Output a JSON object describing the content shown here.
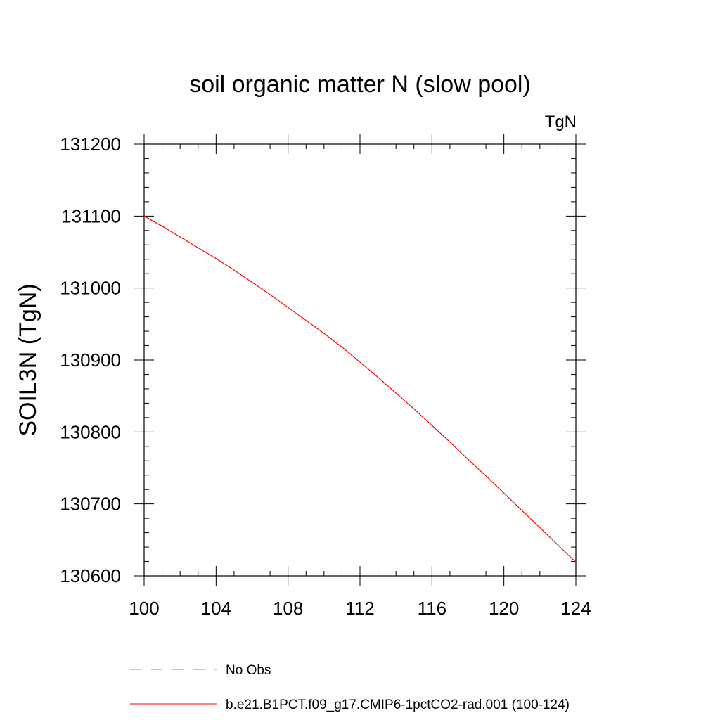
{
  "chart_data": {
    "type": "line",
    "title": "soil organic matter N (slow pool)",
    "units": "TgN",
    "xlabel": "",
    "ylabel": "SOIL3N  (TgN)",
    "xlim": [
      100,
      124
    ],
    "ylim": [
      130600,
      131200
    ],
    "x_ticks": [
      100,
      104,
      108,
      112,
      116,
      120,
      124
    ],
    "y_ticks": [
      130600,
      130700,
      130800,
      130900,
      131000,
      131100,
      131200
    ],
    "series": [
      {
        "name": "b.e21.B1PCT.f09_g17.CMIP6-1pctCO2-rad.001 (100-124)",
        "color": "#ff0000",
        "style": "solid",
        "x": [
          100,
          101,
          102,
          103,
          104,
          105,
          106,
          107,
          108,
          109,
          110,
          111,
          112,
          113,
          114,
          115,
          116,
          117,
          118,
          119,
          120,
          121,
          122,
          123,
          124
        ],
        "y": [
          131100,
          131086,
          131071,
          131056,
          131041,
          131025,
          131008,
          130991,
          130973,
          130955,
          130937,
          130918,
          130897,
          130876,
          130854,
          130832,
          130809,
          130786,
          130762,
          130739,
          130715,
          130691,
          130667,
          130643,
          130619
        ]
      }
    ],
    "legend": {
      "position": "bottom",
      "entries": [
        {
          "label": "No Obs",
          "color": "#8080c0",
          "style": "dashed"
        },
        {
          "label": "b.e21.B1PCT.f09_g17.CMIP6-1pctCO2-rad.001 (100-124)",
          "color": "#ff0000",
          "style": "solid"
        }
      ]
    },
    "grid": false
  }
}
